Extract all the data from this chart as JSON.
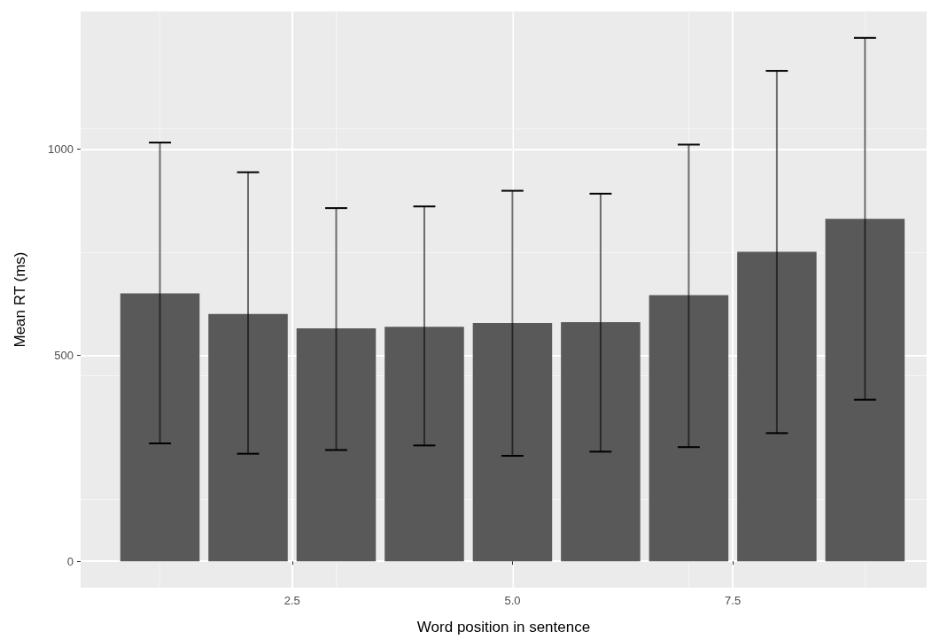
{
  "chart_data": {
    "type": "bar",
    "xlabel": "Word position in sentence",
    "ylabel": "Mean RT (ms)",
    "x": [
      1,
      2,
      3,
      4,
      5,
      6,
      7,
      8,
      9
    ],
    "values": [
      650,
      600,
      565,
      569,
      578,
      580,
      646,
      751,
      831
    ],
    "errors": [
      [
        286,
        1016
      ],
      [
        261,
        944
      ],
      [
        270,
        857
      ],
      [
        281,
        861
      ],
      [
        256,
        899
      ],
      [
        266,
        892
      ],
      [
        277,
        1011
      ],
      [
        311,
        1190
      ],
      [
        392,
        1270
      ]
    ],
    "color": "#595959",
    "xlim": [
      0.1,
      9.7
    ],
    "xticks": [
      {
        "value": 2.5,
        "label": "2.5"
      },
      {
        "value": 5,
        "label": "5.0"
      },
      {
        "value": 7.5,
        "label": "7.5"
      }
    ],
    "ylim": [
      -64,
      1334
    ],
    "yticks": [
      0,
      500,
      1000
    ],
    "grid": true
  }
}
